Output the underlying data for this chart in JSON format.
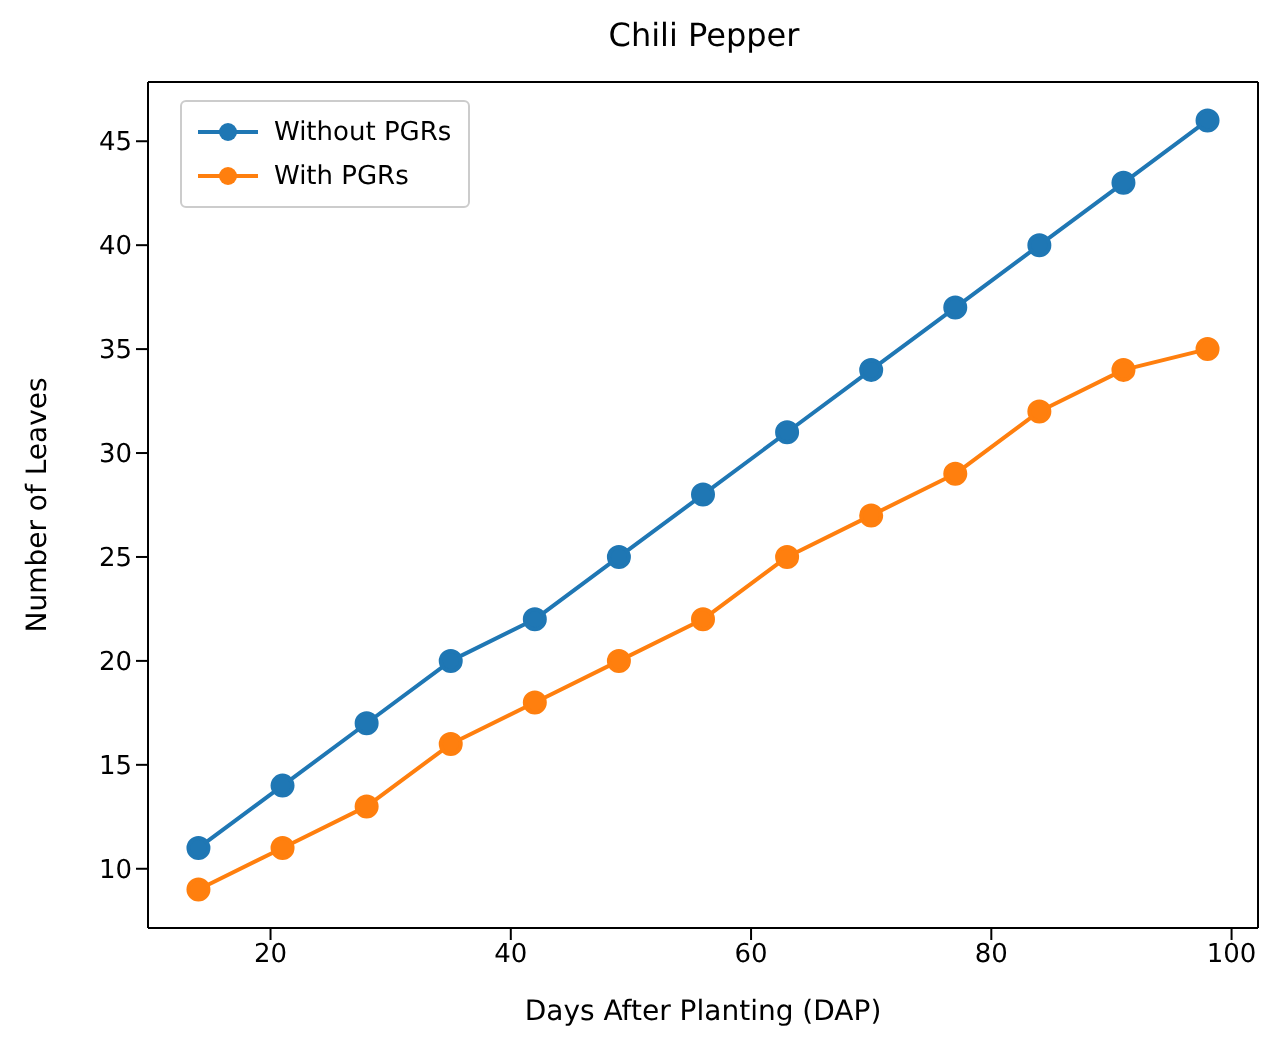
{
  "chart_data": {
    "type": "line",
    "title": "Chili Pepper",
    "xlabel": "Days After Planting (DAP)",
    "ylabel": "Number of Leaves",
    "x": [
      14,
      21,
      28,
      35,
      42,
      49,
      56,
      63,
      70,
      77,
      84,
      91,
      98
    ],
    "series": [
      {
        "name": "Without PGRs",
        "color": "#1f77b4",
        "values": [
          11,
          14,
          17,
          20,
          22,
          25,
          28,
          31,
          34,
          37,
          40,
          43,
          46
        ]
      },
      {
        "name": "With PGRs",
        "color": "#ff7f0e",
        "values": [
          9,
          11,
          13,
          16,
          18,
          20,
          22,
          25,
          27,
          29,
          32,
          34,
          35
        ]
      }
    ],
    "xlim": [
      9.8,
      102.2
    ],
    "xticks": [
      20,
      40,
      60,
      80,
      100
    ],
    "ylim": [
      7.15,
      47.85
    ],
    "yticks": [
      10,
      15,
      20,
      25,
      30,
      35,
      40,
      45
    ],
    "grid": false,
    "legend": "top left",
    "marker": "circle",
    "line_style": "solid"
  }
}
